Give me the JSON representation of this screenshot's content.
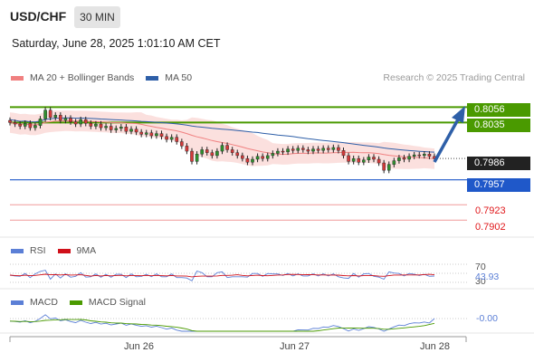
{
  "header": {
    "symbol": "USD/CHF",
    "interval": "30 MIN",
    "datetime": "Saturday, June 28, 2025 1:01:10 AM CET",
    "copyright": "Research © 2025 Trading Central"
  },
  "legend": {
    "ma20": "MA 20 + Bollinger Bands",
    "ma50": "MA 50",
    "ma20_color": "#f08080",
    "ma50_color": "#2e5fa8"
  },
  "levels": {
    "resistance2": "0.8056",
    "resistance1": "0.8035",
    "last_price": "0.7986",
    "pivot": "0.7957",
    "support1": "0.7923",
    "support2": "0.7902",
    "resistance_color": "#4a9a00",
    "pivot_color": "#1f58c9",
    "support_color": "#e0181b"
  },
  "rsi": {
    "label": "RSI",
    "ma_label": "9MA",
    "level_70": "70",
    "value": "43.93",
    "level_30": "30"
  },
  "macd": {
    "label": "MACD",
    "signal_label": "MACD Signal",
    "value": "-0.00"
  },
  "x_axis": {
    "labels": [
      "Jun 26",
      "Jun 27",
      "Jun 28"
    ]
  },
  "chart_data": {
    "type": "candlestick",
    "ylim": [
      0.789,
      0.8075
    ],
    "levels": [
      0.8056,
      0.8035,
      0.7986,
      0.7957,
      0.7923,
      0.7902
    ],
    "closes": [
      0.8035,
      0.8033,
      0.803,
      0.8034,
      0.8028,
      0.8031,
      0.804,
      0.8052,
      0.8042,
      0.8045,
      0.8038,
      0.8041,
      0.8036,
      0.8033,
      0.8039,
      0.8034,
      0.803,
      0.8033,
      0.8028,
      0.803,
      0.8025,
      0.8027,
      0.8029,
      0.8023,
      0.8026,
      0.8022,
      0.8019,
      0.8021,
      0.8017,
      0.802,
      0.8016,
      0.8012,
      0.8015,
      0.8009,
      0.8003,
      0.7996,
      0.7982,
      0.7992,
      0.7998,
      0.7994,
      0.799,
      0.7996,
      0.8004,
      0.7998,
      0.7994,
      0.799,
      0.7986,
      0.7981,
      0.7985,
      0.7989,
      0.7986,
      0.799,
      0.7993,
      0.7996,
      0.7995,
      0.7999,
      0.7997,
      0.8,
      0.7998,
      0.7996,
      0.7999,
      0.7997,
      0.8,
      0.7998,
      0.8001,
      0.7997,
      0.799,
      0.7982,
      0.7986,
      0.7981,
      0.7984,
      0.7988,
      0.7985,
      0.798,
      0.797,
      0.7978,
      0.7983,
      0.7987,
      0.7985,
      0.7989,
      0.7991,
      0.799,
      0.7992,
      0.7989,
      0.7986
    ],
    "rsi_levels": [
      70,
      30
    ],
    "rsi_last": 43.93,
    "macd_last": -0.0,
    "x_labels": [
      "Jun 26",
      "Jun 27",
      "Jun 28"
    ]
  }
}
